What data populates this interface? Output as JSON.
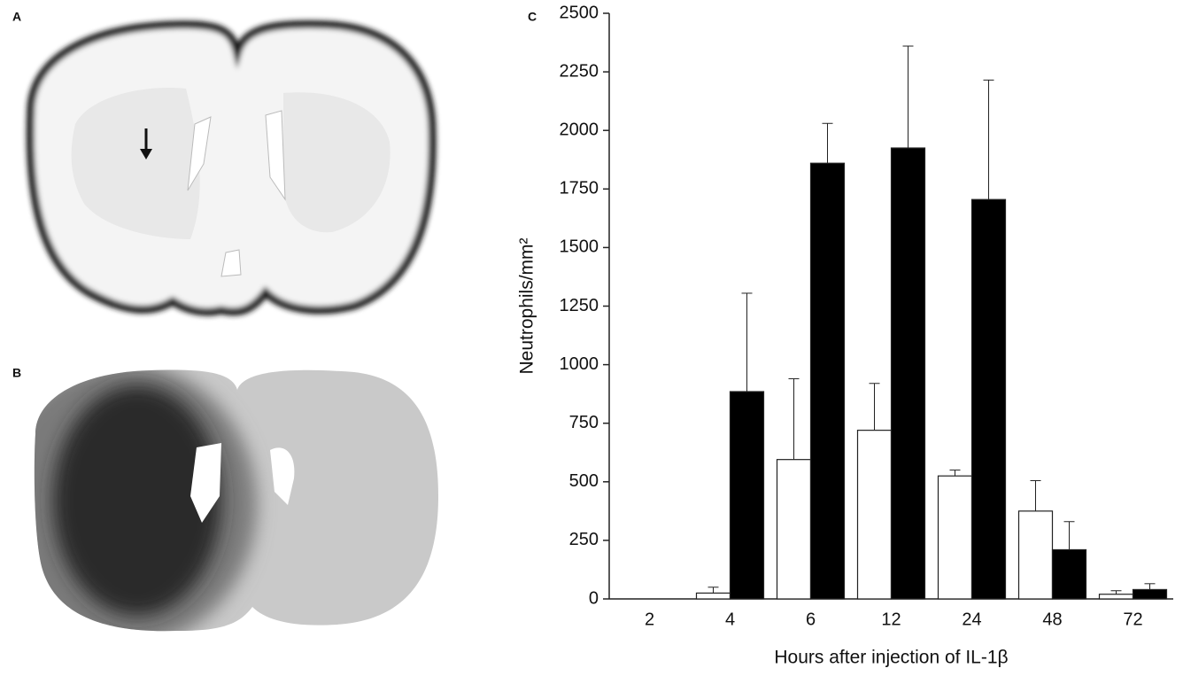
{
  "panels": {
    "a": "A",
    "b": "B"
  },
  "chart_data": {
    "type": "bar",
    "panel_label": "C",
    "xlabel": "Hours after injection of IL-1β",
    "ylabel": "Neutrophils/mm²",
    "categories": [
      "2",
      "4",
      "6",
      "12",
      "24",
      "48",
      "72"
    ],
    "series": [
      {
        "color": "#ffffff",
        "values": [
          0,
          25,
          595,
          720,
          525,
          375,
          20
        ],
        "errors": [
          0,
          25,
          345,
          200,
          25,
          130,
          15
        ]
      },
      {
        "color": "#000000",
        "values": [
          0,
          885,
          1860,
          1925,
          1705,
          210,
          40
        ],
        "errors": [
          0,
          420,
          170,
          435,
          510,
          120,
          25
        ]
      }
    ],
    "ylim": [
      0,
      2500
    ],
    "yticks": [
      0,
      250,
      500,
      750,
      1000,
      1250,
      1500,
      1750,
      2000,
      2250,
      2500
    ],
    "grid": false
  }
}
